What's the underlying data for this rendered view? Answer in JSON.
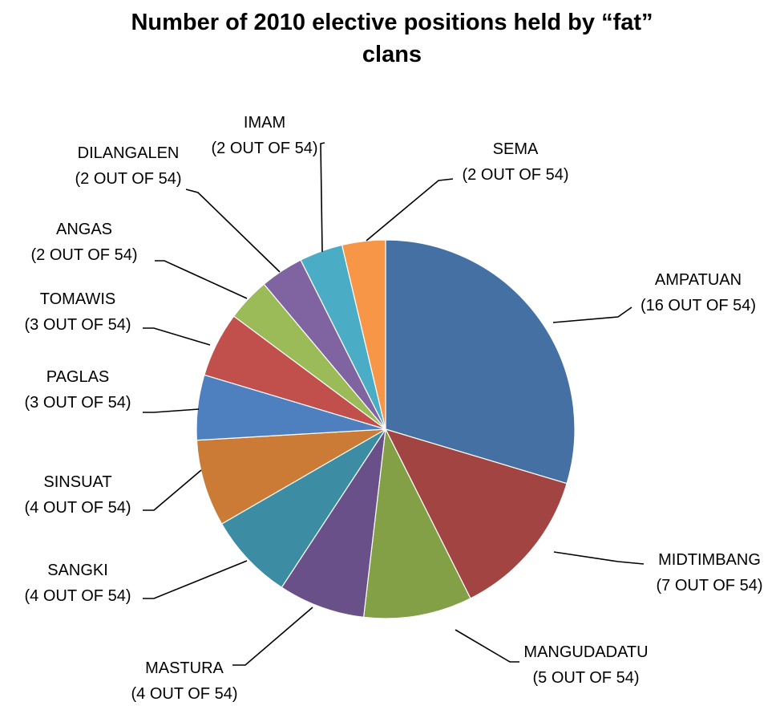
{
  "chart_data": {
    "type": "pie",
    "title": "Number of 2010 elective positions held by “fat” clans",
    "title_lines": [
      "Number of 2010 elective positions held by “fat”",
      "clans"
    ],
    "total": 54,
    "slices": [
      {
        "name": "AMPATUAN",
        "value": 16,
        "label": "(16 OUT OF 54)",
        "color": "#4470A4"
      },
      {
        "name": "MIDTIMBANG",
        "value": 7,
        "label": "(7 OUT OF 54)",
        "color": "#A14442"
      },
      {
        "name": "MANGUDADATU",
        "value": 5,
        "label": "(5 OUT OF 54)",
        "color": "#83A047"
      },
      {
        "name": "MASTURA",
        "value": 4,
        "label": "(4 OUT OF 54)",
        "color": "#6A5089"
      },
      {
        "name": "SANGKI",
        "value": 4,
        "label": "(4 OUT OF 54)",
        "color": "#3C8DA4"
      },
      {
        "name": "SINSUAT",
        "value": 4,
        "label": "(4 OUT OF 54)",
        "color": "#CC7B36"
      },
      {
        "name": "PAGLAS",
        "value": 3,
        "label": "(3 OUT OF 54)",
        "color": "#4E80C0"
      },
      {
        "name": "TOMAWIS",
        "value": 3,
        "label": "(3 OUT OF 54)",
        "color": "#C1504D"
      },
      {
        "name": "ANGAS",
        "value": 2,
        "label": "(2 OUT OF 54)",
        "color": "#9BBB59"
      },
      {
        "name": "DILANGALEN",
        "value": 2,
        "label": "(2 OUT OF 54)",
        "color": "#8064A2"
      },
      {
        "name": "IMAM",
        "value": 2,
        "label": "(2 OUT OF 54)",
        "color": "#4BACC6"
      },
      {
        "name": "SEMA",
        "value": 2,
        "label": "(2 OUT OF 54)",
        "color": "#F79646"
      }
    ]
  }
}
